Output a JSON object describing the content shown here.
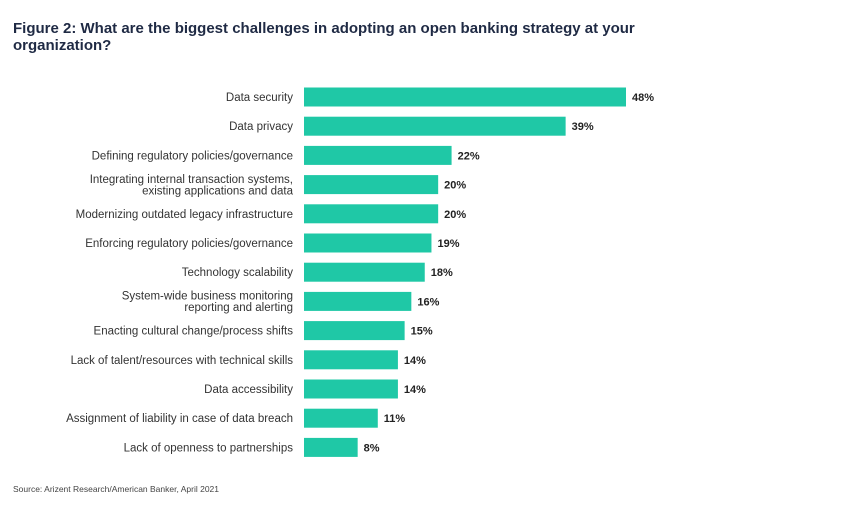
{
  "title": "Figure 2: What are the biggest challenges in adopting an open banking strategy at your organization?",
  "source": "Source: Arizent Research/American Banker, April 2021",
  "bar_color": "#1fc8a6",
  "chart_data": {
    "type": "bar",
    "orientation": "horizontal",
    "categories": [
      [
        "Data security"
      ],
      [
        "Data privacy"
      ],
      [
        "Defining regulatory policies/governance"
      ],
      [
        "Integrating internal transaction systems,",
        "existing applications and data"
      ],
      [
        "Modernizing outdated legacy infrastructure"
      ],
      [
        "Enforcing regulatory policies/governance"
      ],
      [
        "Technology scalability"
      ],
      [
        "System-wide business monitoring",
        "reporting and alerting"
      ],
      [
        "Enacting cultural change/process shifts"
      ],
      [
        "Lack of talent/resources with technical skills"
      ],
      [
        "Data accessibility"
      ],
      [
        "Assignment of liability in case of data breach"
      ],
      [
        "Lack of openness to partnerships"
      ]
    ],
    "values": [
      48,
      39,
      22,
      20,
      20,
      19,
      18,
      16,
      15,
      14,
      14,
      11,
      8
    ],
    "value_labels": [
      "48%",
      "39%",
      "22%",
      "20%",
      "20%",
      "19%",
      "18%",
      "16%",
      "15%",
      "14%",
      "14%",
      "11%",
      "8%"
    ],
    "xlim": [
      0,
      48
    ],
    "grid": false,
    "legend": "none"
  }
}
